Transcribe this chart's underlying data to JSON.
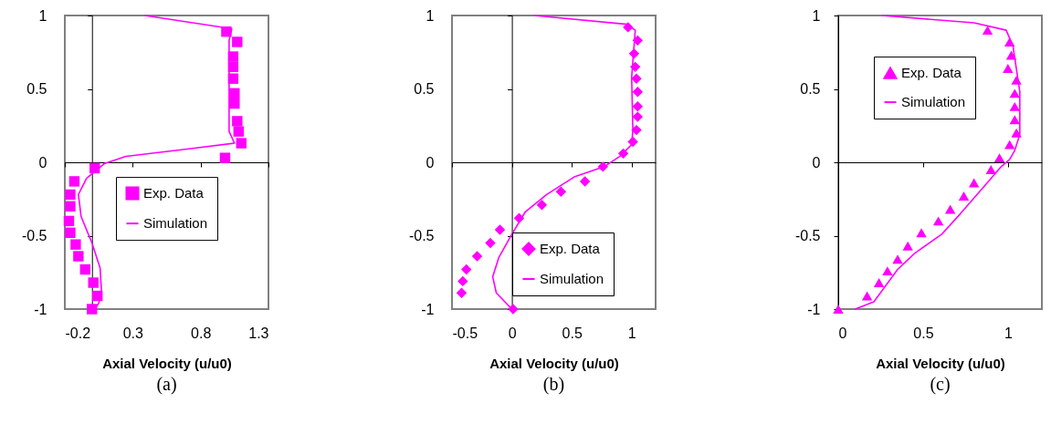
{
  "chart_data": [
    {
      "type": "scatter",
      "xlabel": "Axial Velocity (u/u0)",
      "annotations": [
        "(a)"
      ],
      "xlim": [
        -0.2,
        1.3
      ],
      "xticks": [
        -0.2,
        0.3,
        0.8,
        1.3
      ],
      "ylim": [
        -1,
        1
      ],
      "yticks": [
        -1,
        -0.5,
        0,
        0.5,
        1
      ],
      "legend": "right",
      "series": [
        {
          "name": "Exp. Data",
          "marker": "square",
          "color": "#ff00ff",
          "x": [
            0.99,
            1.07,
            1.04,
            1.04,
            1.04,
            1.05,
            1.05,
            1.07,
            1.08,
            1.1,
            0.98,
            0.02,
            -0.13,
            -0.16,
            -0.16,
            -0.17,
            -0.16,
            -0.12,
            -0.1,
            -0.05,
            0.01,
            0.04,
            0.0
          ],
          "values": [
            0.89,
            0.82,
            0.72,
            0.65,
            0.57,
            0.47,
            0.4,
            0.28,
            0.21,
            0.13,
            0.03,
            -0.04,
            -0.13,
            -0.22,
            -0.3,
            -0.4,
            -0.48,
            -0.56,
            -0.64,
            -0.73,
            -0.82,
            -0.91,
            -1.0
          ]
        },
        {
          "name": "Simulation",
          "type": "line",
          "color": "#ff00ff",
          "x": [
            0.39,
            1.03,
            1.01,
            1.01,
            1.01,
            1.05,
            0.7,
            0.25,
            0.09,
            -0.04,
            -0.1,
            -0.08,
            0.0,
            0.06,
            0.07,
            0.05,
            0.02
          ],
          "values": [
            1,
            0.91,
            0.83,
            0.48,
            0.21,
            0.13,
            0.09,
            0.04,
            -0.01,
            -0.11,
            -0.22,
            -0.37,
            -0.55,
            -0.72,
            -0.88,
            -0.96,
            -1
          ]
        }
      ]
    },
    {
      "type": "scatter",
      "xlabel": "Axial Velocity (u/u0)",
      "annotations": [
        "(b)"
      ],
      "xlim": [
        -0.5,
        1.2
      ],
      "xticks": [
        -0.5,
        0,
        0.5,
        1
      ],
      "ylim": [
        -1,
        1
      ],
      "yticks": [
        -1,
        -0.5,
        0,
        0.5,
        1
      ],
      "legend": "bottom right",
      "series": [
        {
          "name": "Exp. Data",
          "marker": "diamond",
          "color": "#ff00ff",
          "x": [
            0.97,
            1.05,
            1.02,
            1.03,
            1.04,
            1.05,
            1.05,
            1.05,
            1.04,
            1.01,
            0.93,
            0.76,
            0.61,
            0.41,
            0.25,
            0.06,
            -0.1,
            -0.18,
            -0.29,
            -0.38,
            -0.41,
            -0.42,
            0.01
          ],
          "values": [
            0.92,
            0.83,
            0.74,
            0.65,
            0.57,
            0.48,
            0.38,
            0.31,
            0.22,
            0.14,
            0.06,
            -0.03,
            -0.13,
            -0.2,
            -0.29,
            -0.38,
            -0.46,
            -0.55,
            -0.64,
            -0.73,
            -0.81,
            -0.89,
            -1.0
          ]
        },
        {
          "name": "Simulation",
          "type": "line",
          "color": "#ff00ff",
          "x": [
            0.19,
            0.96,
            1.03,
            1.0,
            1.01,
            1.0,
            0.9,
            0.77,
            0.52,
            0.29,
            0.11,
            0.0,
            -0.11,
            -0.16,
            -0.13,
            0
          ],
          "values": [
            1,
            0.94,
            0.9,
            0.58,
            0.22,
            0.12,
            0.04,
            -0.03,
            -0.1,
            -0.22,
            -0.34,
            -0.49,
            -0.65,
            -0.78,
            -0.89,
            -1
          ]
        }
      ]
    },
    {
      "type": "scatter",
      "xlabel": "Axial Velocity (u/u0)",
      "annotations": [
        "(c)"
      ],
      "xlim": [
        0,
        1.2
      ],
      "xticks": [
        0,
        0.5,
        1
      ],
      "ylim": [
        -1,
        1
      ],
      "yticks": [
        -1,
        -0.5,
        0,
        0.5,
        1
      ],
      "legend": "top",
      "series": [
        {
          "name": "Exp. Data",
          "marker": "triangle",
          "color": "#ff00ff",
          "x": [
            0.88,
            1.01,
            1.02,
            1.0,
            1.05,
            1.04,
            1.04,
            1.04,
            1.05,
            1.01,
            0.95,
            0.9,
            0.8,
            0.74,
            0.66,
            0.59,
            0.49,
            0.41,
            0.35,
            0.29,
            0.24,
            0.17,
            0.0
          ],
          "values": [
            0.9,
            0.82,
            0.73,
            0.64,
            0.56,
            0.47,
            0.38,
            0.29,
            0.2,
            0.12,
            0.03,
            -0.05,
            -0.14,
            -0.23,
            -0.32,
            -0.4,
            -0.48,
            -0.57,
            -0.66,
            -0.74,
            -0.82,
            -0.91,
            -1.0
          ]
        },
        {
          "name": "Simulation",
          "type": "line",
          "color": "#ff00ff",
          "x": [
            0.26,
            0.8,
            0.99,
            1.03,
            1.07,
            1.07,
            1.04,
            1.01,
            0.96,
            0.87,
            0.72,
            0.61,
            0.45,
            0.35,
            0.21,
            0.1
          ],
          "values": [
            1,
            0.95,
            0.9,
            0.79,
            0.48,
            0.19,
            0.08,
            0.02,
            -0.03,
            -0.15,
            -0.35,
            -0.49,
            -0.62,
            -0.73,
            -0.95,
            -1
          ]
        }
      ]
    }
  ]
}
